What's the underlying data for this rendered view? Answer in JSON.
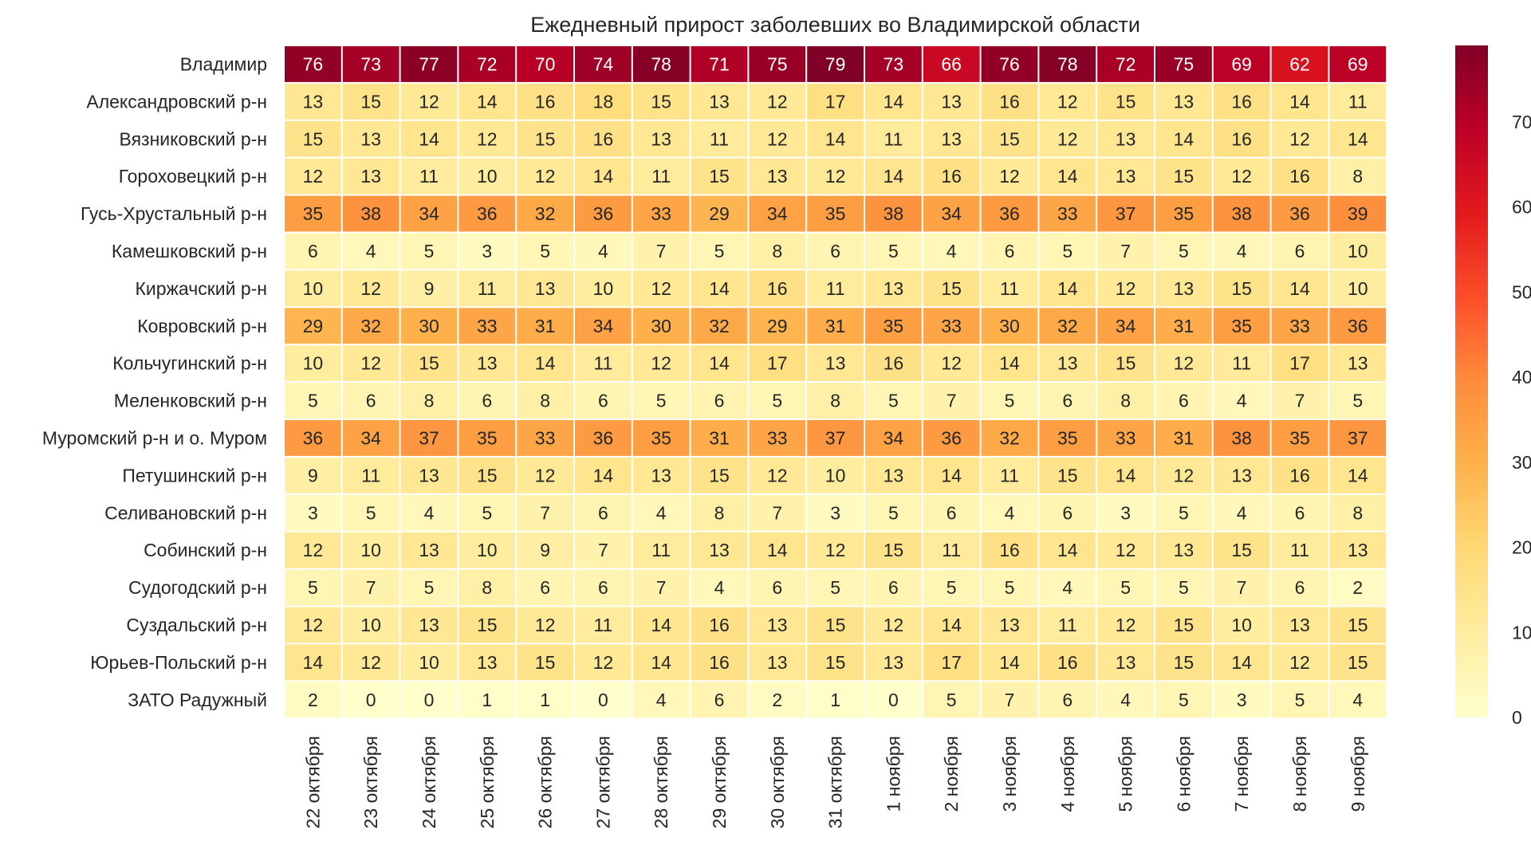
{
  "chart_data": {
    "type": "heatmap",
    "title": "Ежедневный прирост заболевших во Владимирской области",
    "rows": [
      "Владимир",
      "Александровский р-н",
      "Вязниковский р-н",
      "Гороховецкий р-н",
      "Гусь-Хрустальный р-н",
      "Камешковский р-н",
      "Киржачский р-н",
      "Ковровский р-н",
      "Кольчугинский р-н",
      "Меленковский р-н",
      "Муромский р-н и о. Муром",
      "Петушинский р-н",
      "Селивановский р-н",
      "Собинский р-н",
      "Судогодский р-н",
      "Суздальский р-н",
      "Юрьев-Польский р-н",
      "ЗАТО Радужный"
    ],
    "columns": [
      "22 октября",
      "23 октября",
      "24 октября",
      "25 октября",
      "26 октября",
      "27 октября",
      "28 октября",
      "29 октября",
      "30 октября",
      "31 октября",
      "1 ноября",
      "2 ноября",
      "3 ноября",
      "4 ноября",
      "5 ноября",
      "6 ноября",
      "7 ноября",
      "8 ноября",
      "9 ноября"
    ],
    "values": [
      [
        76,
        73,
        77,
        72,
        70,
        74,
        78,
        71,
        75,
        79,
        73,
        66,
        76,
        78,
        72,
        75,
        69,
        62,
        69
      ],
      [
        13,
        15,
        12,
        14,
        16,
        18,
        15,
        13,
        12,
        17,
        14,
        13,
        16,
        12,
        15,
        13,
        16,
        14,
        11
      ],
      [
        15,
        13,
        14,
        12,
        15,
        16,
        13,
        11,
        12,
        14,
        11,
        13,
        15,
        12,
        13,
        14,
        16,
        12,
        14
      ],
      [
        12,
        13,
        11,
        10,
        12,
        14,
        11,
        15,
        13,
        12,
        14,
        16,
        12,
        14,
        13,
        15,
        12,
        16,
        8
      ],
      [
        35,
        38,
        34,
        36,
        32,
        36,
        33,
        29,
        34,
        35,
        38,
        34,
        36,
        33,
        37,
        35,
        38,
        36,
        39
      ],
      [
        6,
        4,
        5,
        3,
        5,
        4,
        7,
        5,
        8,
        6,
        5,
        4,
        6,
        5,
        7,
        5,
        4,
        6,
        10
      ],
      [
        10,
        12,
        9,
        11,
        13,
        10,
        12,
        14,
        16,
        11,
        13,
        15,
        11,
        14,
        12,
        13,
        15,
        14,
        10
      ],
      [
        29,
        32,
        30,
        33,
        31,
        34,
        30,
        32,
        29,
        31,
        35,
        33,
        30,
        32,
        34,
        31,
        35,
        33,
        36
      ],
      [
        10,
        12,
        15,
        13,
        14,
        11,
        12,
        14,
        17,
        13,
        16,
        12,
        14,
        13,
        15,
        12,
        11,
        17,
        13
      ],
      [
        5,
        6,
        8,
        6,
        8,
        6,
        5,
        6,
        5,
        8,
        5,
        7,
        5,
        6,
        8,
        6,
        4,
        7,
        5
      ],
      [
        36,
        34,
        37,
        35,
        33,
        36,
        35,
        31,
        33,
        37,
        34,
        36,
        32,
        35,
        33,
        31,
        38,
        35,
        37
      ],
      [
        9,
        11,
        13,
        15,
        12,
        14,
        13,
        15,
        12,
        10,
        13,
        14,
        11,
        15,
        14,
        12,
        13,
        16,
        14
      ],
      [
        3,
        5,
        4,
        5,
        7,
        6,
        4,
        8,
        7,
        3,
        5,
        6,
        4,
        6,
        3,
        5,
        4,
        6,
        8
      ],
      [
        12,
        10,
        13,
        10,
        9,
        7,
        11,
        13,
        14,
        12,
        15,
        11,
        16,
        14,
        12,
        13,
        15,
        11,
        13
      ],
      [
        5,
        7,
        5,
        8,
        6,
        6,
        7,
        4,
        6,
        5,
        6,
        5,
        5,
        4,
        5,
        5,
        7,
        6,
        2
      ],
      [
        12,
        10,
        13,
        15,
        12,
        11,
        14,
        16,
        13,
        15,
        12,
        14,
        13,
        11,
        12,
        15,
        10,
        13,
        15
      ],
      [
        14,
        12,
        10,
        13,
        15,
        12,
        14,
        16,
        13,
        15,
        13,
        17,
        14,
        16,
        13,
        15,
        14,
        12,
        15
      ],
      [
        2,
        0,
        0,
        1,
        1,
        0,
        4,
        6,
        2,
        1,
        0,
        5,
        7,
        6,
        4,
        5,
        3,
        5,
        4
      ]
    ],
    "colormap": "YlOrRd",
    "vmin": 0,
    "vmax": 79,
    "colorbar_ticks": [
      0,
      10,
      20,
      30,
      40,
      50,
      60,
      70
    ],
    "grid": false,
    "legend": "colorbar-right"
  }
}
